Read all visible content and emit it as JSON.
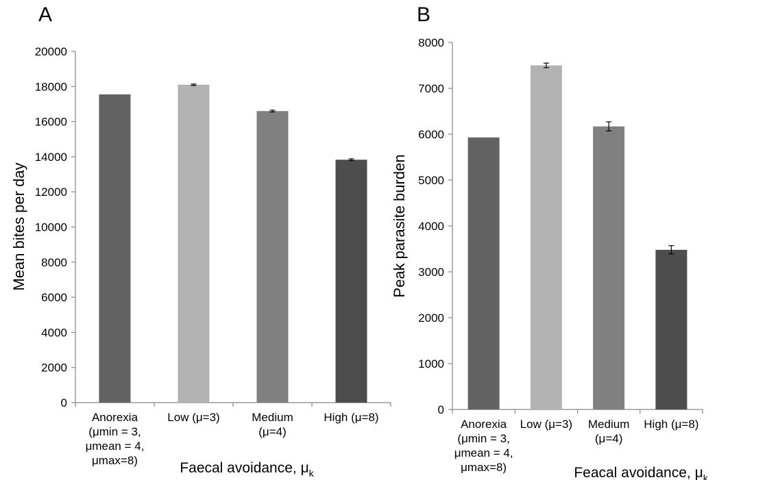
{
  "panels": {
    "a_label": "A",
    "b_label": "B"
  },
  "chart_data": [
    {
      "type": "bar",
      "panel": "A",
      "categories": [
        [
          "Anorexia",
          "(μmin = 3,",
          "μmean = 4,",
          "μmax=8)"
        ],
        [
          "Low (μ=3)"
        ],
        [
          "Medium",
          "(μ=4)"
        ],
        [
          "High (μ=8)"
        ]
      ],
      "values": [
        17550,
        18100,
        16600,
        13830
      ],
      "errors": [
        0,
        40,
        50,
        50
      ],
      "colors": [
        "#636363",
        "#b2b2b2",
        "#808080",
        "#4d4d4d"
      ],
      "ylabel": "Mean bites per day",
      "xlabel": "Faecal avoidance, μ",
      "xlabel_sub": "k",
      "ylim": [
        0,
        20000
      ],
      "yticks": [
        0,
        2000,
        4000,
        6000,
        8000,
        10000,
        12000,
        14000,
        16000,
        18000,
        20000
      ],
      "grid": false
    },
    {
      "type": "bar",
      "panel": "B",
      "categories": [
        [
          "Anorexia",
          "(μmin = 3,",
          "μmean = 4,",
          "μmax=8)"
        ],
        [
          "Low (μ=3)"
        ],
        [
          "Medium",
          "(μ=4)"
        ],
        [
          "High (μ=8)"
        ]
      ],
      "values": [
        5930,
        7500,
        6170,
        3480
      ],
      "errors": [
        0,
        50,
        100,
        90
      ],
      "colors": [
        "#636363",
        "#b2b2b2",
        "#808080",
        "#4d4d4d"
      ],
      "ylabel": "Peak parasite burden",
      "xlabel": "Feacal avoidance, μ",
      "xlabel_sub": "k",
      "ylim": [
        0,
        8000
      ],
      "yticks": [
        0,
        1000,
        2000,
        3000,
        4000,
        5000,
        6000,
        7000,
        8000
      ],
      "grid": false
    }
  ]
}
